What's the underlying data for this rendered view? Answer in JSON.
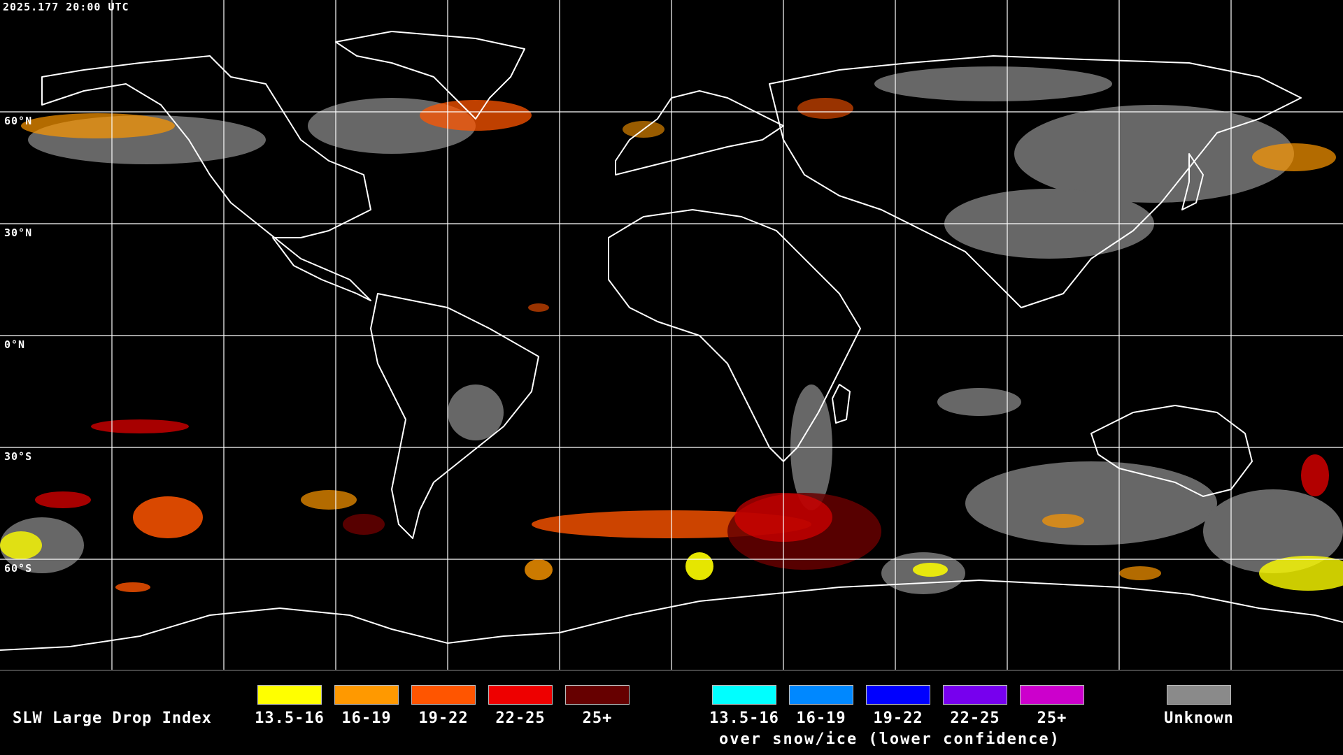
{
  "timestamp": "2025.177 20:00 UTC",
  "latitude_labels": [
    "60°N",
    "30°N",
    "0°N",
    "30°S",
    "60°S"
  ],
  "colors": {
    "background": "#000000",
    "gridline": "#ffffff",
    "coastline": "#ffffff",
    "unknown": "#8a8a8a"
  },
  "legend": {
    "title": "SLW Large Drop Index",
    "liquid_categories": [
      {
        "label": "13.5-16",
        "color": "#ffff00"
      },
      {
        "label": "16-19",
        "color": "#ff9900"
      },
      {
        "label": "19-22",
        "color": "#ff5500"
      },
      {
        "label": "22-25",
        "color": "#ee0000"
      },
      {
        "label": "25+",
        "color": "#660000"
      }
    ],
    "snow_ice_categories": [
      {
        "label": "13.5-16",
        "color": "#00ffff"
      },
      {
        "label": "16-19",
        "color": "#0088ff"
      },
      {
        "label": "19-22",
        "color": "#0000ff"
      },
      {
        "label": "22-25",
        "color": "#7700ee"
      },
      {
        "label": "25+",
        "color": "#cc00cc"
      }
    ],
    "snow_ice_caption": "over snow/ice (lower confidence)",
    "unknown": {
      "label": "Unknown",
      "color": "#8a8a8a"
    }
  }
}
